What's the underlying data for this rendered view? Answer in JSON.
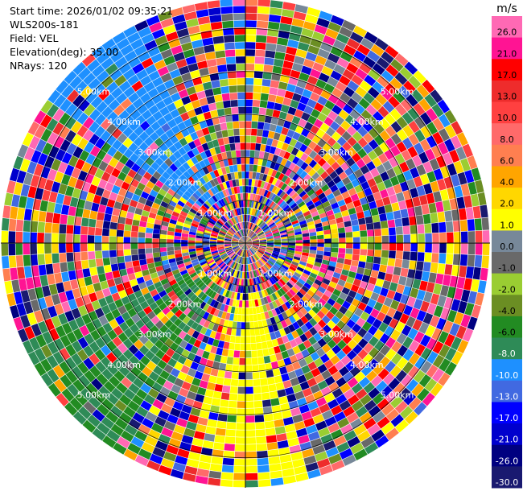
{
  "header": {
    "start_time": "Start time: 2026/01/02 09:35:21",
    "instrument": "WLS200s-181",
    "field": "Field: VEL",
    "elevation": "Elevation(deg): 35.00",
    "nrays": "NRays: 120"
  },
  "chart_data": {
    "type": "heatmap",
    "projection": "polar (PPI scan)",
    "field": "VEL",
    "elevation_deg": 35.0,
    "n_rays": 120,
    "range_rings_km": [
      1.0,
      2.0,
      3.0,
      4.0,
      5.0
    ],
    "range_ring_labels": [
      "1.00km",
      "2.00km",
      "3.00km",
      "4.00km",
      "5.00km"
    ],
    "colorbar": {
      "unit": "m/s",
      "tick_labels": [
        "26.0",
        "21.0",
        "17.0",
        "13.0",
        "10.0",
        "8.0",
        "6.0",
        "4.0",
        "2.0",
        "1.0",
        "0.0",
        "-1.0",
        "-2.0",
        "-4.0",
        "-6.0",
        "-8.0",
        "-10.0",
        "-13.0",
        "-17.0",
        "-21.0",
        "-26.0",
        "-30.0"
      ],
      "bins": [
        {
          "from": 26.0,
          "to": 30.0,
          "color": "#ff69b4"
        },
        {
          "from": 21.0,
          "to": 26.0,
          "color": "#ff1493"
        },
        {
          "from": 17.0,
          "to": 21.0,
          "color": "#ff0000"
        },
        {
          "from": 13.0,
          "to": 17.0,
          "color": "#ee2c2c"
        },
        {
          "from": 10.0,
          "to": 13.0,
          "color": "#ff4040"
        },
        {
          "from": 8.0,
          "to": 10.0,
          "color": "#ff6a6a"
        },
        {
          "from": 6.0,
          "to": 8.0,
          "color": "#ff7f50"
        },
        {
          "from": 4.0,
          "to": 6.0,
          "color": "#ffa500"
        },
        {
          "from": 2.0,
          "to": 4.0,
          "color": "#ffd700"
        },
        {
          "from": 1.0,
          "to": 2.0,
          "color": "#ffff00"
        },
        {
          "from": 0.0,
          "to": 1.0,
          "color": "#778899"
        },
        {
          "from": -1.0,
          "to": 0.0,
          "color": "#696969"
        },
        {
          "from": -2.0,
          "to": -1.0,
          "color": "#9acd32"
        },
        {
          "from": -4.0,
          "to": -2.0,
          "color": "#6b8e23"
        },
        {
          "from": -6.0,
          "to": -4.0,
          "color": "#228b22"
        },
        {
          "from": -8.0,
          "to": -6.0,
          "color": "#2e8b57"
        },
        {
          "from": -10.0,
          "to": -8.0,
          "color": "#1e90ff"
        },
        {
          "from": -13.0,
          "to": -10.0,
          "color": "#4169e1"
        },
        {
          "from": -17.0,
          "to": -13.0,
          "color": "#0000ff"
        },
        {
          "from": -21.0,
          "to": -17.0,
          "color": "#0000cd"
        },
        {
          "from": -26.0,
          "to": -21.0,
          "color": "#000080"
        },
        {
          "from": -30.0,
          "to": -26.0,
          "color": "#191970"
        }
      ]
    },
    "notable_regions": [
      {
        "description": "coherent negative velocities",
        "azimuth_deg": [
          210,
          245
        ],
        "value_range_ms": [
          -8,
          -4
        ]
      },
      {
        "description": "coherent negative velocities",
        "azimuth_deg": [
          305,
          335
        ],
        "value_range_ms": [
          -10,
          -8
        ]
      },
      {
        "description": "coherent positive velocities",
        "azimuth_deg": [
          165,
          195
        ],
        "value_range_ms": [
          1,
          2
        ]
      }
    ]
  }
}
